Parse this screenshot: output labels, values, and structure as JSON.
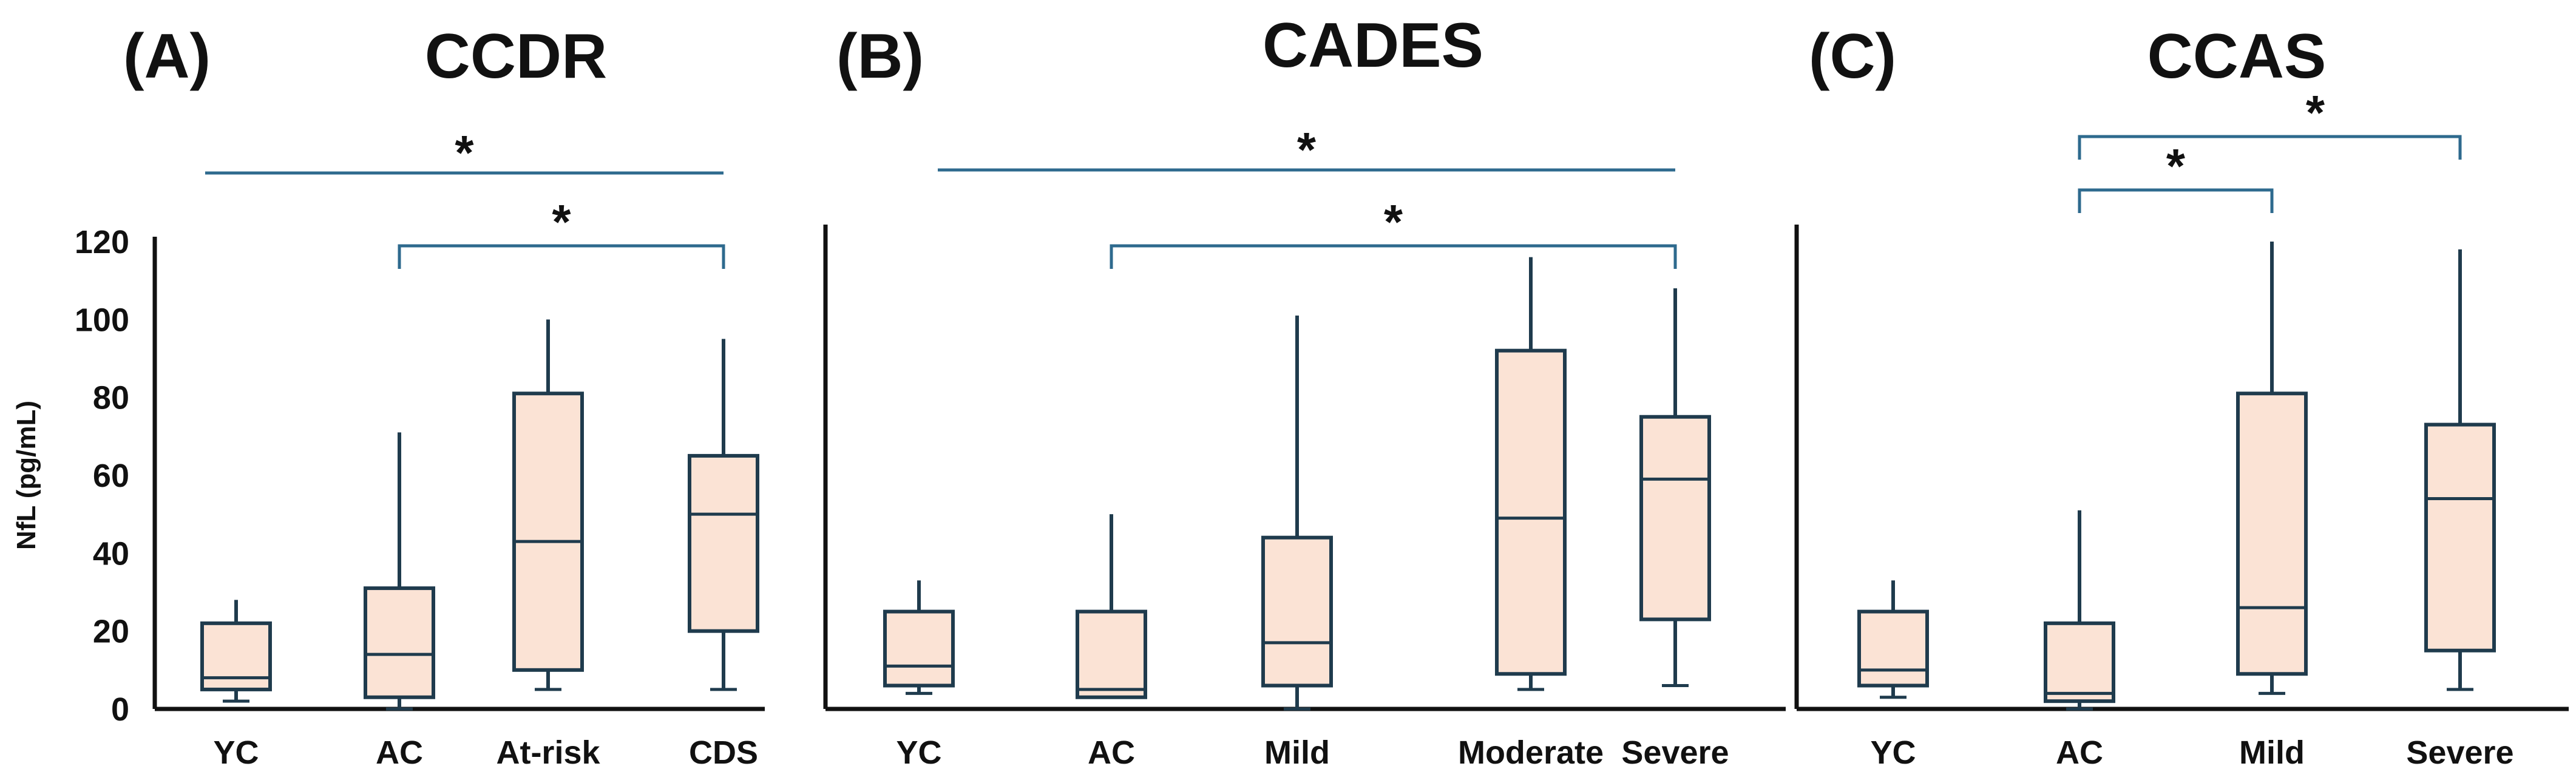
{
  "colors": {
    "box_fill": "#FBE3D5",
    "box_stroke": "#1F3B4D",
    "bracket": "#2E6A8E",
    "axis": "#111111"
  },
  "y_axis_label": "NfL (pg/mL)",
  "chart_data": [
    {
      "type": "box",
      "letter": "(A)",
      "title": "CCDR",
      "ylabel": "NfL (pg/mL)",
      "ylim": [
        0,
        120
      ],
      "yticks": [
        0,
        20,
        40,
        60,
        80,
        100,
        120
      ],
      "categories": [
        "YC",
        "AC",
        "At-risk",
        "CDS"
      ],
      "boxes": [
        {
          "name": "YC",
          "min": 2,
          "q1": 5,
          "median": 8,
          "q3": 22,
          "max": 28
        },
        {
          "name": "AC",
          "min": 0,
          "q1": 3,
          "median": 14,
          "q3": 31,
          "max": 71
        },
        {
          "name": "At-risk",
          "min": 5,
          "q1": 10,
          "median": 43,
          "q3": 81,
          "max": 100
        },
        {
          "name": "CDS",
          "min": 5,
          "q1": 20,
          "median": 50,
          "q3": 65,
          "max": 95
        }
      ],
      "significance": [
        {
          "from": "YC",
          "to": "CDS",
          "label": "*",
          "style": "line"
        },
        {
          "from": "AC",
          "to": "CDS",
          "label": "*",
          "style": "bracket"
        }
      ]
    },
    {
      "type": "box",
      "letter": "(B)",
      "title": "CADES",
      "ylim": [
        0,
        120
      ],
      "categories": [
        "YC",
        "AC",
        "Mild",
        "Moderate",
        "Severe"
      ],
      "boxes": [
        {
          "name": "YC",
          "min": 4,
          "q1": 6,
          "median": 11,
          "q3": 25,
          "max": 33
        },
        {
          "name": "AC",
          "min": 3,
          "q1": 3,
          "median": 5,
          "q3": 25,
          "max": 50
        },
        {
          "name": "Mild",
          "min": 0,
          "q1": 6,
          "median": 17,
          "q3": 44,
          "max": 101
        },
        {
          "name": "Moderate",
          "min": 5,
          "q1": 9,
          "median": 49,
          "q3": 92,
          "max": 116
        },
        {
          "name": "Severe",
          "min": 6,
          "q1": 23,
          "median": 59,
          "q3": 75,
          "max": 108
        }
      ],
      "significance": [
        {
          "from": "YC",
          "to": "Severe",
          "label": "*",
          "style": "line"
        },
        {
          "from": "AC",
          "to": "Severe",
          "label": "*",
          "style": "bracket"
        }
      ]
    },
    {
      "type": "box",
      "letter": "(C)",
      "title": "CCAS",
      "ylim": [
        0,
        120
      ],
      "categories": [
        "YC",
        "AC",
        "Mild",
        "Severe"
      ],
      "boxes": [
        {
          "name": "YC",
          "min": 3,
          "q1": 6,
          "median": 10,
          "q3": 25,
          "max": 33
        },
        {
          "name": "AC",
          "min": 0,
          "q1": 2,
          "median": 4,
          "q3": 22,
          "max": 51
        },
        {
          "name": "Mild",
          "min": 4,
          "q1": 9,
          "median": 26,
          "q3": 81,
          "max": 120
        },
        {
          "name": "Severe",
          "min": 5,
          "q1": 15,
          "median": 54,
          "q3": 73,
          "max": 118
        }
      ],
      "significance": [
        {
          "from": "AC",
          "to": "Mild",
          "label": "*",
          "style": "bracket"
        },
        {
          "from": "AC",
          "to": "Severe",
          "label": "*",
          "style": "bracket"
        }
      ]
    }
  ]
}
